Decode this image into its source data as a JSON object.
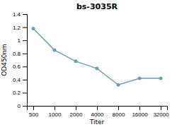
{
  "chart_data": {
    "type": "line",
    "title": "bs-3035R",
    "xlabel": "Titer",
    "ylabel": "OD450nm",
    "categories": [
      "500",
      "1000",
      "2000",
      "4000",
      "8000",
      "16000",
      "32000"
    ],
    "values": [
      1.18,
      0.85,
      0.68,
      0.57,
      0.32,
      0.42,
      0.42
    ],
    "color": "#6a9fb5",
    "marker": "circle",
    "ylim": [
      0,
      1.4
    ],
    "yticks": [
      0,
      0.2,
      0.4,
      0.6,
      0.8,
      1,
      1.2,
      1.4
    ]
  }
}
